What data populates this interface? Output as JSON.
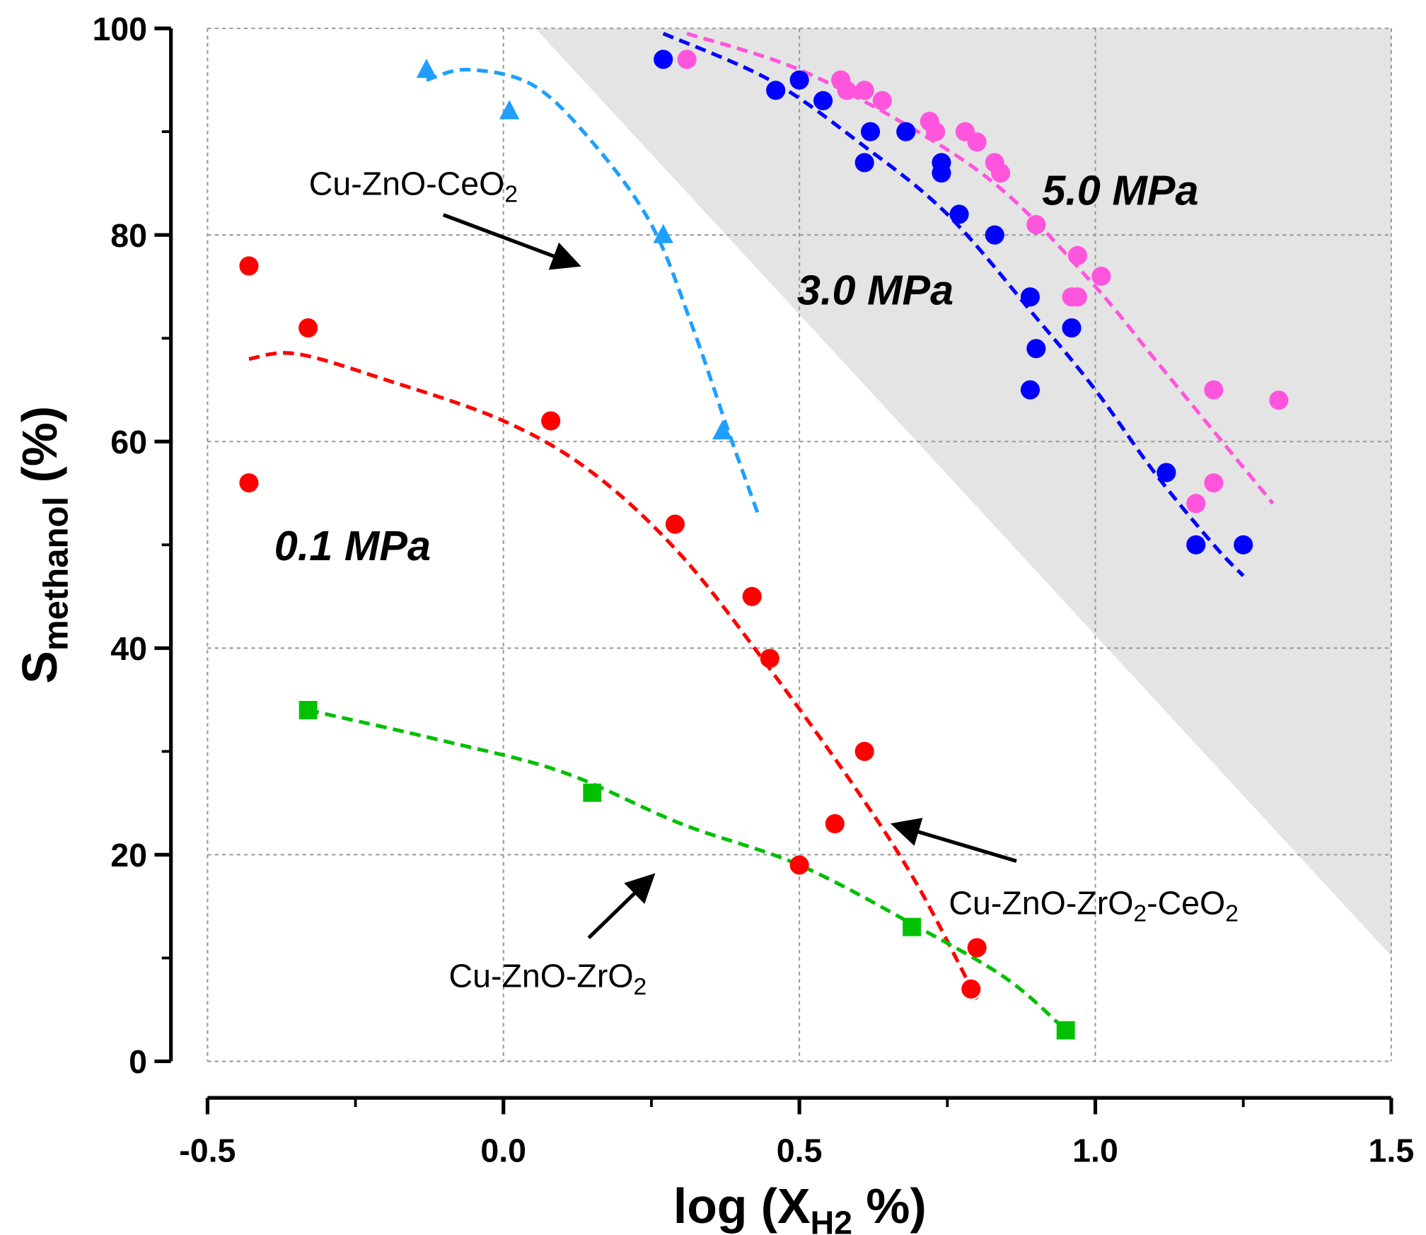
{
  "chart_data": {
    "type": "scatter",
    "xlabel": {
      "main": "log (X",
      "sub": "H2",
      "tail": " %)"
    },
    "ylabel": {
      "main": "S",
      "sub": "methanol",
      "tail": " (%)"
    },
    "xlim": [
      -0.5,
      1.5
    ],
    "ylim": [
      0,
      100
    ],
    "xticks": [
      -0.5,
      0.0,
      0.5,
      1.0,
      1.5
    ],
    "xtick_labels": [
      "-0.5",
      "0.0",
      "0.5",
      "1.0",
      "1.5"
    ],
    "yticks": [
      0,
      20,
      40,
      60,
      80,
      100
    ],
    "ytick_labels": [
      "0",
      "20",
      "40",
      "60",
      "80",
      "100"
    ],
    "grid": true,
    "shaded_region": {
      "color": "#e4e4e4",
      "from": [
        0.054,
        100
      ],
      "to": [
        1.5,
        10.2
      ]
    },
    "series": [
      {
        "name": "Cu-ZnO-ZrO2-CeO2 0.1 MPa",
        "marker": "circle",
        "color": "#ff0000",
        "points": [
          [
            -0.43,
            77
          ],
          [
            -0.33,
            71
          ],
          [
            -0.43,
            56
          ],
          [
            0.08,
            62
          ],
          [
            0.29,
            52
          ],
          [
            0.42,
            45
          ],
          [
            0.45,
            39
          ],
          [
            0.61,
            30
          ],
          [
            0.56,
            23
          ],
          [
            0.5,
            19
          ],
          [
            0.8,
            11
          ],
          [
            0.79,
            7
          ]
        ],
        "fit": [
          [
            -0.43,
            68
          ],
          [
            -0.35,
            68.5
          ],
          [
            -0.2,
            66
          ],
          [
            0,
            62
          ],
          [
            0.15,
            57
          ],
          [
            0.3,
            49
          ],
          [
            0.45,
            38
          ],
          [
            0.6,
            26
          ],
          [
            0.7,
            17
          ],
          [
            0.8,
            6
          ]
        ]
      },
      {
        "name": "Cu-ZnO-ZrO2",
        "marker": "square",
        "color": "#00c000",
        "points": [
          [
            -0.33,
            34
          ],
          [
            0.15,
            26
          ],
          [
            0.69,
            13
          ],
          [
            0.95,
            3
          ]
        ],
        "fit": [
          [
            -0.33,
            34
          ],
          [
            -0.1,
            31
          ],
          [
            0.1,
            28
          ],
          [
            0.3,
            23
          ],
          [
            0.5,
            19
          ],
          [
            0.7,
            13
          ],
          [
            0.85,
            8
          ],
          [
            0.95,
            3
          ]
        ]
      },
      {
        "name": "Cu-ZnO-CeO2",
        "marker": "triangle",
        "color": "#1e9fff",
        "points": [
          [
            -0.13,
            96
          ],
          [
            0.01,
            92
          ],
          [
            0.27,
            80
          ],
          [
            0.37,
            61
          ]
        ],
        "fit": [
          [
            -0.13,
            95
          ],
          [
            -0.06,
            96
          ],
          [
            0.05,
            94.5
          ],
          [
            0.15,
            89
          ],
          [
            0.25,
            81
          ],
          [
            0.32,
            71
          ],
          [
            0.38,
            61
          ],
          [
            0.43,
            53
          ]
        ]
      },
      {
        "name": "3.0 MPa",
        "marker": "circle",
        "color": "#0000ff",
        "points": [
          [
            0.27,
            97
          ],
          [
            0.46,
            94
          ],
          [
            0.5,
            95
          ],
          [
            0.54,
            93
          ],
          [
            0.62,
            90
          ],
          [
            0.61,
            87
          ],
          [
            0.68,
            90
          ],
          [
            0.74,
            87
          ],
          [
            0.74,
            86
          ],
          [
            0.77,
            82
          ],
          [
            0.83,
            80
          ],
          [
            0.89,
            74
          ],
          [
            0.9,
            69
          ],
          [
            0.89,
            65
          ],
          [
            0.96,
            71
          ],
          [
            1.12,
            57
          ],
          [
            1.17,
            50
          ],
          [
            1.25,
            50
          ]
        ],
        "fit": [
          [
            0.27,
            99.5
          ],
          [
            0.45,
            95
          ],
          [
            0.6,
            89
          ],
          [
            0.75,
            82
          ],
          [
            0.9,
            72
          ],
          [
            1.0,
            65
          ],
          [
            1.1,
            57
          ],
          [
            1.2,
            50
          ],
          [
            1.25,
            47
          ]
        ]
      },
      {
        "name": "5.0 MPa",
        "marker": "circle",
        "color": "#ff55dd",
        "points": [
          [
            0.31,
            97
          ],
          [
            0.57,
            95
          ],
          [
            0.58,
            94
          ],
          [
            0.61,
            94
          ],
          [
            0.64,
            93
          ],
          [
            0.72,
            91
          ],
          [
            0.73,
            90
          ],
          [
            0.78,
            90
          ],
          [
            0.8,
            89
          ],
          [
            0.83,
            87
          ],
          [
            0.84,
            86
          ],
          [
            0.9,
            81
          ],
          [
            0.97,
            78
          ],
          [
            0.96,
            74
          ],
          [
            0.97,
            74
          ],
          [
            1.01,
            76
          ],
          [
            1.2,
            65
          ],
          [
            1.2,
            56
          ],
          [
            1.17,
            54
          ],
          [
            1.31,
            64
          ]
        ],
        "fit": [
          [
            0.31,
            99.5
          ],
          [
            0.5,
            96
          ],
          [
            0.7,
            90
          ],
          [
            0.85,
            84
          ],
          [
            1.0,
            75
          ],
          [
            1.1,
            68
          ],
          [
            1.2,
            61
          ],
          [
            1.3,
            54
          ]
        ]
      }
    ],
    "annotations": {
      "ceo2": {
        "main": "Cu-ZnO-CeO",
        "sub": "2"
      },
      "zro2": {
        "main": "Cu-ZnO-ZrO",
        "sub": "2"
      },
      "zrce": {
        "main": "Cu-ZnO-ZrO",
        "sub": "2",
        "main2": "-CeO",
        "sub2": "2"
      },
      "p01": "0.1 MPa",
      "p30": "3.0 MPa",
      "p50": "5.0 MPa"
    }
  }
}
